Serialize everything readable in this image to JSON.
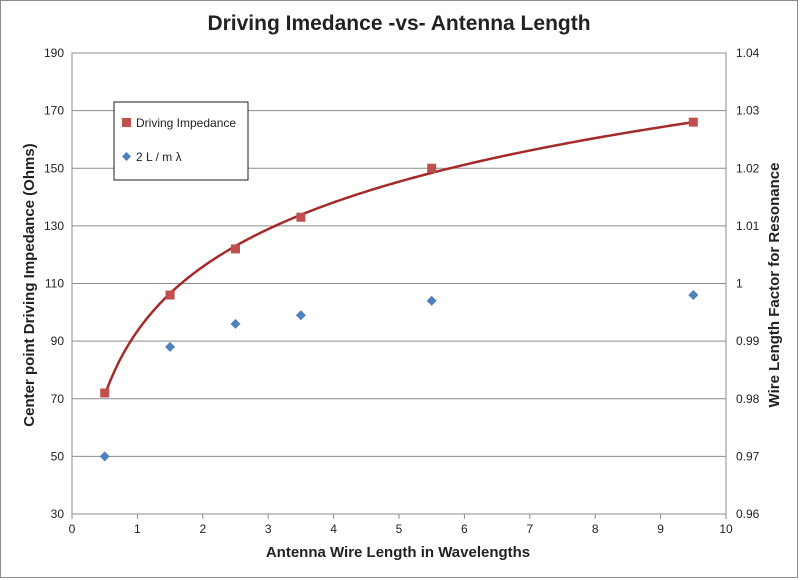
{
  "chart_data": {
    "type": "scatter",
    "title": "Driving Imedance -vs- Antenna Length",
    "xlabel": "Antenna Wire Length in Wavelengths",
    "ylabel_left": "Center point Driving Impedance (Ohms)",
    "ylabel_right": "Wire Length Factor for Resonance",
    "xlim": [
      0,
      10
    ],
    "ylim_left": [
      30,
      190
    ],
    "ylim_right": [
      0.96,
      1.04
    ],
    "x_ticks": [
      "0",
      "1",
      "2",
      "3",
      "4",
      "5",
      "6",
      "7",
      "8",
      "9",
      "10"
    ],
    "y_left_ticks": [
      "30",
      "50",
      "70",
      "90",
      "110",
      "130",
      "150",
      "170",
      "190"
    ],
    "y_right_ticks": [
      "0.96",
      "0.97",
      "0.98",
      "0.99",
      "1",
      "1.01",
      "1.02",
      "1.03",
      "1.04"
    ],
    "grid": "horizontal",
    "legend_position": "top-left",
    "series": [
      {
        "name": "Driving Impedance",
        "axis": "left",
        "marker": "square",
        "color": "#c0504d",
        "x": [
          0.5,
          1.5,
          2.5,
          3.5,
          5.5,
          9.5
        ],
        "y": [
          72,
          106,
          122,
          133,
          150,
          166
        ]
      },
      {
        "name": "2 L / m λ",
        "axis": "right",
        "marker": "diamond",
        "color": "#4f81bd",
        "x": [
          0.5,
          1.5,
          2.5,
          3.5,
          5.5,
          9.5
        ],
        "y": [
          0.97,
          0.989,
          0.993,
          0.9945,
          0.997,
          0.998
        ]
      }
    ],
    "trendline": {
      "series": "Driving Impedance",
      "type": "logarithmic",
      "color": "#a52a2a",
      "x_range": [
        0.5,
        9.5
      ]
    }
  }
}
